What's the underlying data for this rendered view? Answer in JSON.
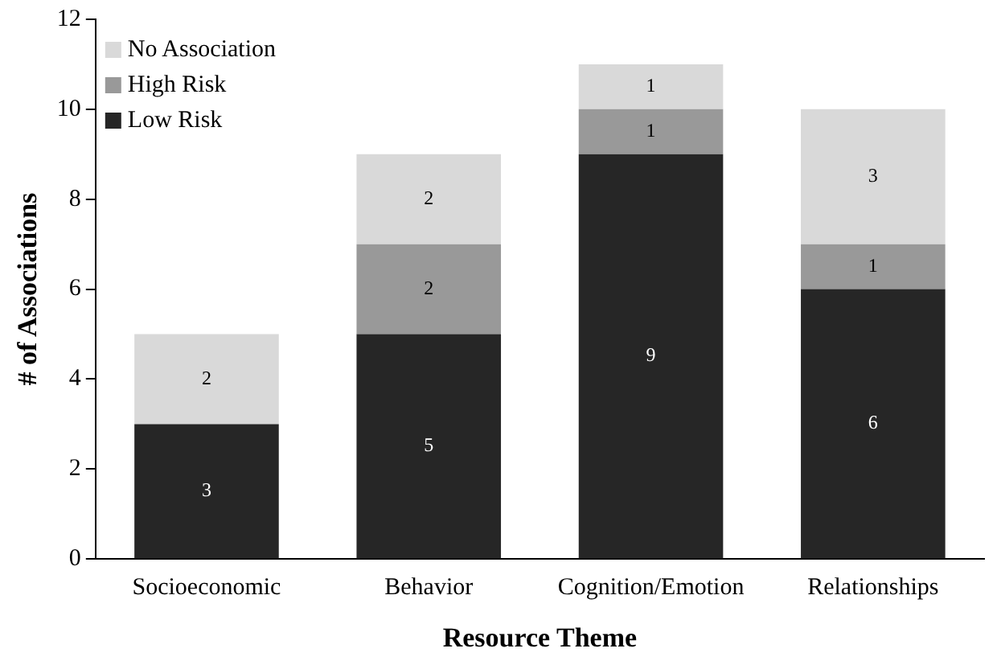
{
  "chart_data": {
    "type": "bar",
    "xlabel": "Resource Theme",
    "ylabel": "# of Associations",
    "categories": [
      "Socioeconomic",
      "Behavior",
      "Cognition/Emotion",
      "Relationships"
    ],
    "stacked": true,
    "series": [
      {
        "name": "Low Risk",
        "color": "#262626",
        "values": [
          3,
          5,
          9,
          6
        ],
        "value_labels": [
          "3",
          "5",
          "9",
          "6"
        ]
      },
      {
        "name": "High Risk",
        "color": "#999999",
        "values": [
          0,
          2,
          1,
          1
        ],
        "value_labels": [
          null,
          "2",
          "1",
          "1"
        ]
      },
      {
        "name": "No Association",
        "color": "#d9d9d9",
        "values": [
          2,
          2,
          1,
          3
        ],
        "value_labels": [
          "2",
          "2",
          "1",
          "3"
        ]
      }
    ],
    "ylim": [
      0,
      12
    ],
    "yticks": [
      0,
      2,
      4,
      6,
      8,
      10,
      12
    ],
    "grid": false,
    "legend": "top left"
  }
}
